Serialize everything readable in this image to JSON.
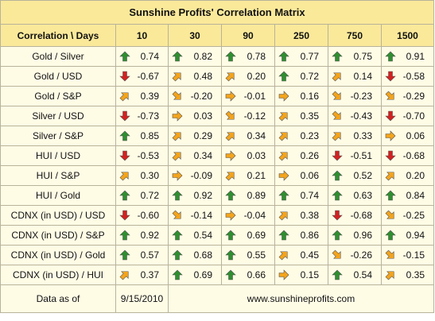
{
  "title": "Sunshine Profits' Correlation Matrix",
  "header": {
    "label": "Correlation \\ Days",
    "days": [
      "10",
      "30",
      "90",
      "250",
      "750",
      "1500"
    ]
  },
  "colors": {
    "header_bg": "#fbe99a",
    "cell_bg": "#fffce6",
    "arrow_up": "#2f8f2f",
    "arrow_down": "#d42020",
    "arrow_neutral": "#f3a41c"
  },
  "rows": [
    {
      "label": "Gold / Silver",
      "cells": [
        {
          "value": "0.74",
          "arrow": "up"
        },
        {
          "value": "0.82",
          "arrow": "up"
        },
        {
          "value": "0.78",
          "arrow": "up"
        },
        {
          "value": "0.77",
          "arrow": "up"
        },
        {
          "value": "0.75",
          "arrow": "up"
        },
        {
          "value": "0.91",
          "arrow": "up"
        }
      ]
    },
    {
      "label": "Gold / USD",
      "cells": [
        {
          "value": "-0.67",
          "arrow": "down"
        },
        {
          "value": "0.48",
          "arrow": "up-right"
        },
        {
          "value": "0.20",
          "arrow": "up-right"
        },
        {
          "value": "0.72",
          "arrow": "up"
        },
        {
          "value": "0.14",
          "arrow": "up-right"
        },
        {
          "value": "-0.58",
          "arrow": "down"
        }
      ]
    },
    {
      "label": "Gold / S&P",
      "cells": [
        {
          "value": "0.39",
          "arrow": "up-right"
        },
        {
          "value": "-0.20",
          "arrow": "down-right"
        },
        {
          "value": "-0.01",
          "arrow": "right"
        },
        {
          "value": "0.16",
          "arrow": "right"
        },
        {
          "value": "-0.23",
          "arrow": "down-right"
        },
        {
          "value": "-0.29",
          "arrow": "down-right"
        }
      ]
    },
    {
      "label": "Silver / USD",
      "cells": [
        {
          "value": "-0.73",
          "arrow": "down"
        },
        {
          "value": "0.03",
          "arrow": "right"
        },
        {
          "value": "-0.12",
          "arrow": "down-right"
        },
        {
          "value": "0.35",
          "arrow": "up-right"
        },
        {
          "value": "-0.43",
          "arrow": "down-right"
        },
        {
          "value": "-0.70",
          "arrow": "down"
        }
      ]
    },
    {
      "label": "Silver / S&P",
      "cells": [
        {
          "value": "0.85",
          "arrow": "up"
        },
        {
          "value": "0.29",
          "arrow": "up-right"
        },
        {
          "value": "0.34",
          "arrow": "up-right"
        },
        {
          "value": "0.23",
          "arrow": "up-right"
        },
        {
          "value": "0.33",
          "arrow": "up-right"
        },
        {
          "value": "0.06",
          "arrow": "right"
        }
      ]
    },
    {
      "label": "HUI / USD",
      "cells": [
        {
          "value": "-0.53",
          "arrow": "down"
        },
        {
          "value": "0.34",
          "arrow": "up-right"
        },
        {
          "value": "0.03",
          "arrow": "right"
        },
        {
          "value": "0.26",
          "arrow": "up-right"
        },
        {
          "value": "-0.51",
          "arrow": "down"
        },
        {
          "value": "-0.68",
          "arrow": "down"
        }
      ]
    },
    {
      "label": "HUI / S&P",
      "cells": [
        {
          "value": "0.30",
          "arrow": "up-right"
        },
        {
          "value": "-0.09",
          "arrow": "right"
        },
        {
          "value": "0.21",
          "arrow": "up-right"
        },
        {
          "value": "0.06",
          "arrow": "right"
        },
        {
          "value": "0.52",
          "arrow": "up"
        },
        {
          "value": "0.20",
          "arrow": "up-right"
        }
      ]
    },
    {
      "label": "HUI / Gold",
      "cells": [
        {
          "value": "0.72",
          "arrow": "up"
        },
        {
          "value": "0.92",
          "arrow": "up"
        },
        {
          "value": "0.89",
          "arrow": "up"
        },
        {
          "value": "0.74",
          "arrow": "up"
        },
        {
          "value": "0.63",
          "arrow": "up"
        },
        {
          "value": "0.84",
          "arrow": "up"
        }
      ]
    },
    {
      "label": "CDNX (in USD) / USD",
      "cells": [
        {
          "value": "-0.60",
          "arrow": "down"
        },
        {
          "value": "-0.14",
          "arrow": "down-right"
        },
        {
          "value": "-0.04",
          "arrow": "right"
        },
        {
          "value": "0.38",
          "arrow": "up-right"
        },
        {
          "value": "-0.68",
          "arrow": "down"
        },
        {
          "value": "-0.25",
          "arrow": "down-right"
        }
      ]
    },
    {
      "label": "CDNX (in USD) / S&P",
      "cells": [
        {
          "value": "0.92",
          "arrow": "up"
        },
        {
          "value": "0.54",
          "arrow": "up"
        },
        {
          "value": "0.69",
          "arrow": "up"
        },
        {
          "value": "0.86",
          "arrow": "up"
        },
        {
          "value": "0.96",
          "arrow": "up"
        },
        {
          "value": "0.94",
          "arrow": "up"
        }
      ]
    },
    {
      "label": "CDNX (in USD) / Gold",
      "cells": [
        {
          "value": "0.57",
          "arrow": "up"
        },
        {
          "value": "0.68",
          "arrow": "up"
        },
        {
          "value": "0.55",
          "arrow": "up"
        },
        {
          "value": "0.45",
          "arrow": "up-right"
        },
        {
          "value": "-0.26",
          "arrow": "down-right"
        },
        {
          "value": "-0.15",
          "arrow": "down-right"
        }
      ]
    },
    {
      "label": "CDNX (in USD) / HUI",
      "cells": [
        {
          "value": "0.37",
          "arrow": "up-right"
        },
        {
          "value": "0.69",
          "arrow": "up"
        },
        {
          "value": "0.66",
          "arrow": "up"
        },
        {
          "value": "0.15",
          "arrow": "right"
        },
        {
          "value": "0.54",
          "arrow": "up"
        },
        {
          "value": "0.35",
          "arrow": "up-right"
        }
      ]
    }
  ],
  "footer": {
    "label": "Data as of",
    "date": "9/15/2010",
    "website": "www.sunshineprofits.com"
  }
}
